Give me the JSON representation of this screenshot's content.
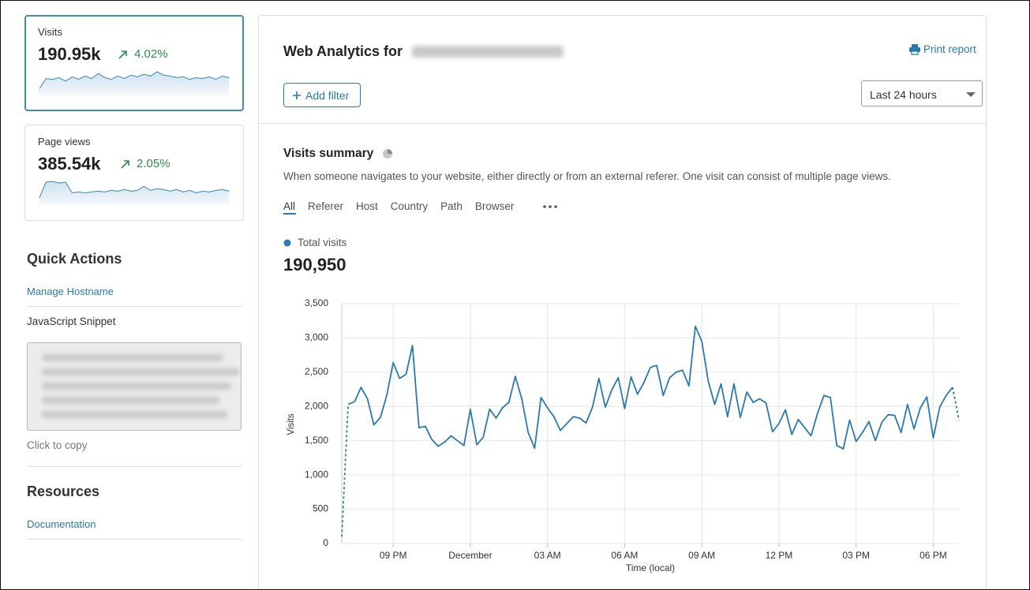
{
  "sidebar": {
    "cards": [
      {
        "label": "Visits",
        "value": "190.95k",
        "change": "4.02%",
        "sparkline": [
          800,
          2000,
          1900,
          2100,
          1700,
          2200,
          1900,
          2300,
          2000,
          2600,
          2100,
          1900,
          2300,
          2000,
          2400,
          2200,
          2500,
          2300,
          2800,
          2400,
          2300,
          2100,
          2200,
          1900,
          2100,
          2000,
          2200,
          1900,
          2300,
          2100
        ]
      },
      {
        "label": "Page views",
        "value": "385.54k",
        "change": "2.05%",
        "sparkline": [
          900,
          2800,
          2900,
          2700,
          2800,
          1500,
          1600,
          1500,
          1600,
          1700,
          1600,
          1800,
          1700,
          1900,
          1700,
          1800,
          2300,
          1800,
          2000,
          1900,
          1700,
          1900,
          1600,
          1800,
          1500,
          1700,
          1600,
          1800,
          1900,
          1700
        ]
      }
    ],
    "quick_actions": {
      "title": "Quick Actions",
      "links": [
        "Manage Hostname"
      ],
      "snippet_title": "JavaScript Snippet",
      "copy_hint": "Click to copy"
    },
    "resources": {
      "title": "Resources",
      "links": [
        "Documentation"
      ]
    }
  },
  "header": {
    "title": "Web Analytics for",
    "print": "Print report",
    "add_filter": "Add filter",
    "time_range": "Last 24 hours"
  },
  "summary": {
    "title": "Visits summary",
    "description": "When someone navigates to your website, either directly or from an external referer. One visit can consist of multiple page views.",
    "tabs": [
      "All",
      "Referer",
      "Host",
      "Country",
      "Path",
      "Browser"
    ],
    "total": "190,950"
  },
  "chart_data": {
    "type": "line",
    "x_label": "Time (local)",
    "y_label": "Visits",
    "grid": true,
    "dashed_ends": true,
    "xlim": [
      0,
      96
    ],
    "xticks": [
      {
        "value": 8,
        "label": "09 PM"
      },
      {
        "value": 20,
        "label": "December"
      },
      {
        "value": 32,
        "label": "03 AM"
      },
      {
        "value": 44,
        "label": "06 AM"
      },
      {
        "value": 56,
        "label": "09 AM"
      },
      {
        "value": 68,
        "label": "12 PM"
      },
      {
        "value": 80,
        "label": "03 PM"
      },
      {
        "value": 92,
        "label": "06 PM"
      }
    ],
    "ylim": [
      0,
      3500
    ],
    "yticks": [
      0,
      500,
      {
        "value": 1000,
        "label": "1,000"
      },
      {
        "value": 1500,
        "label": "1,500"
      },
      {
        "value": 2000,
        "label": "2,000"
      },
      {
        "value": 2500,
        "label": "2,500"
      },
      {
        "value": 3000,
        "label": "3,000"
      },
      {
        "value": 3500,
        "label": "3,500"
      }
    ],
    "x": [
      0,
      1,
      2,
      3,
      4,
      5,
      6,
      7,
      8,
      9,
      10,
      11,
      12,
      13,
      14,
      15,
      16,
      17,
      18,
      19,
      20,
      21,
      22,
      23,
      24,
      25,
      26,
      27,
      28,
      29,
      30,
      31,
      32,
      33,
      34,
      35,
      36,
      37,
      38,
      39,
      40,
      41,
      42,
      43,
      44,
      45,
      46,
      47,
      48,
      49,
      50,
      51,
      52,
      53,
      54,
      55,
      56,
      57,
      58,
      59,
      60,
      61,
      62,
      63,
      64,
      65,
      66,
      67,
      68,
      69,
      70,
      71,
      72,
      73,
      74,
      75,
      76,
      77,
      78,
      79,
      80,
      81,
      82,
      83,
      84,
      85,
      86,
      87,
      88,
      89,
      90,
      91,
      92,
      93,
      94,
      95,
      96
    ],
    "series": [
      {
        "name": "Total visits",
        "color": "#2b79ad",
        "values": [
          100,
          2030,
          2070,
          2280,
          2110,
          1730,
          1840,
          2160,
          2640,
          2410,
          2470,
          2890,
          1690,
          1710,
          1520,
          1420,
          1480,
          1570,
          1500,
          1430,
          1960,
          1440,
          1550,
          1960,
          1830,
          1980,
          2060,
          2440,
          2110,
          1620,
          1390,
          2130,
          1980,
          1850,
          1650,
          1750,
          1850,
          1830,
          1760,
          1990,
          2410,
          1990,
          2240,
          2420,
          1970,
          2430,
          2180,
          2350,
          2570,
          2600,
          2160,
          2420,
          2500,
          2530,
          2300,
          3170,
          2950,
          2370,
          2030,
          2330,
          1850,
          2330,
          1840,
          2210,
          2060,
          2110,
          2050,
          1630,
          1750,
          1950,
          1590,
          1810,
          1690,
          1570,
          1900,
          2160,
          2130,
          1430,
          1380,
          1800,
          1490,
          1620,
          1780,
          1500,
          1770,
          1880,
          1870,
          1620,
          2030,
          1670,
          1980,
          2140,
          1540,
          1990,
          2160,
          2280,
          1800
        ]
      }
    ]
  }
}
